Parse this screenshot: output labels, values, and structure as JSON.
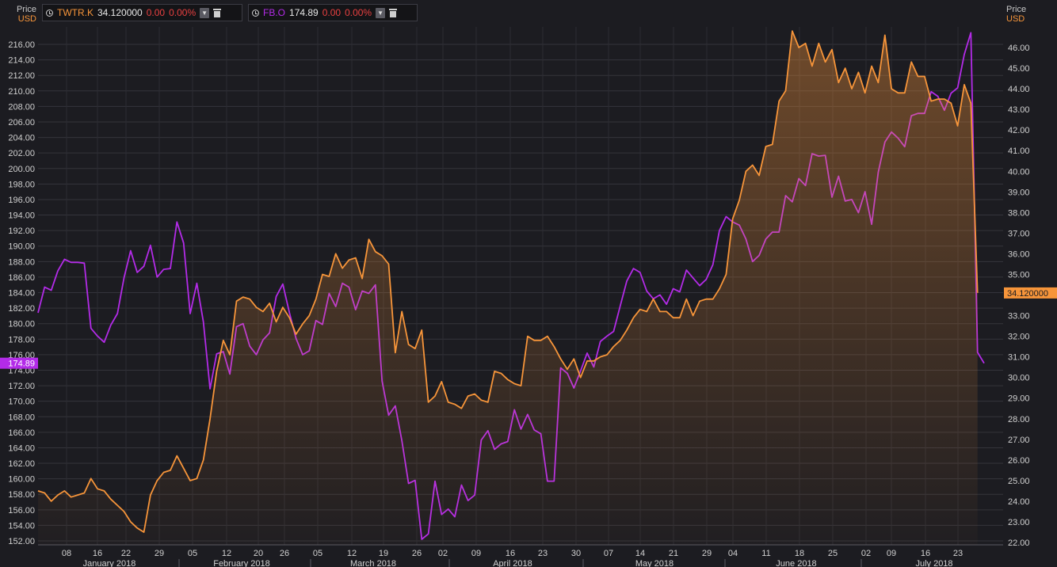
{
  "legends": [
    {
      "symbol": "TWTR.K",
      "value": "34.120000",
      "change": "0.00",
      "pct": "0.00%",
      "color": "#f7953a"
    },
    {
      "symbol": "FB.O",
      "value": "174.89",
      "change": "0.00",
      "pct": "0.00%",
      "color": "#b32be8"
    }
  ],
  "icons": {
    "clock": "clock-icon",
    "dropdown": "chevron-down-icon",
    "trash": "trash-icon"
  },
  "colors": {
    "background": "#1c1c21",
    "grid": "#34343b",
    "axis_text": "#d0d0d0",
    "currency": "#f7953a"
  },
  "chart_data": {
    "type": "line",
    "left_axis": {
      "title": "Price",
      "unit": "USD",
      "range": [
        152,
        218
      ],
      "ticks": [
        "216.00",
        "214.00",
        "212.00",
        "210.00",
        "208.00",
        "206.00",
        "204.00",
        "202.00",
        "200.00",
        "198.00",
        "196.00",
        "194.00",
        "192.00",
        "190.00",
        "188.00",
        "186.00",
        "184.00",
        "182.00",
        "180.00",
        "178.00",
        "176.00",
        "174.00",
        "172.00",
        "170.00",
        "168.00",
        "166.00",
        "164.00",
        "162.00",
        "160.00",
        "158.00",
        "156.00",
        "154.00",
        "152.00"
      ]
    },
    "right_axis": {
      "title": "Price",
      "unit": "USD",
      "range": [
        22,
        47
      ],
      "ticks": [
        "46.00",
        "45.00",
        "44.00",
        "43.00",
        "42.00",
        "41.00",
        "40.00",
        "39.00",
        "38.00",
        "37.00",
        "36.00",
        "35.00",
        "34.00",
        "33.00",
        "32.00",
        "31.00",
        "30.00",
        "29.00",
        "28.00",
        "27.00",
        "26.00",
        "25.00",
        "24.00",
        "23.00",
        "22.00"
      ]
    },
    "x_ticks": [
      "08",
      "16",
      "22",
      "29",
      "05",
      "12",
      "20",
      "26",
      "05",
      "12",
      "19",
      "26",
      "02",
      "09",
      "16",
      "23",
      "30",
      "07",
      "14",
      "21",
      "29",
      "04",
      "11",
      "18",
      "25",
      "02",
      "09",
      "16",
      "23"
    ],
    "months": [
      "January 2018",
      "February 2018",
      "March 2018",
      "April 2018",
      "May 2018",
      "June 2018",
      "July 2018"
    ],
    "series": [
      {
        "name": "FB.O",
        "axis": "left",
        "last_label": "174.89",
        "color": "#b32be8",
        "values": [
          181.4,
          184.7,
          184.3,
          186.8,
          188.3,
          187.9,
          187.9,
          187.8,
          179.4,
          178.4,
          177.6,
          179.8,
          181.3,
          185.9,
          189.4,
          186.6,
          187.4,
          190.1,
          186.0,
          187.0,
          187.1,
          193.1,
          190.4,
          181.3,
          185.2,
          180.2,
          171.6,
          176.1,
          176.4,
          173.5,
          179.6,
          180.0,
          177.1,
          176.0,
          177.9,
          178.8,
          183.5,
          185.1,
          181.4,
          178.1,
          176.0,
          176.5,
          180.4,
          179.9,
          183.9,
          182.2,
          185.2,
          184.7,
          181.8,
          184.2,
          183.9,
          185.0,
          172.6,
          168.2,
          169.4,
          164.9,
          159.4,
          159.8,
          152.2,
          152.9,
          159.7,
          155.4,
          156.1,
          155.1,
          159.2,
          157.2,
          157.9,
          165.0,
          166.2,
          163.8,
          164.5,
          164.8,
          168.9,
          166.4,
          168.3,
          166.3,
          165.8,
          159.7,
          159.7,
          174.3,
          173.6,
          171.7,
          173.9,
          176.2,
          174.4,
          177.7,
          178.4,
          179.0,
          182.3,
          185.5,
          187.1,
          186.6,
          184.2,
          183.2,
          183.7,
          182.5,
          184.5,
          184.1,
          186.9,
          185.9,
          184.9,
          185.7,
          187.6,
          192.0,
          193.8,
          193.1,
          192.7,
          190.9,
          188.0,
          188.8,
          190.9,
          191.8,
          191.8,
          196.5,
          195.7,
          198.7,
          197.8,
          201.9,
          201.6,
          201.7,
          196.3,
          199.0,
          195.8,
          196.0,
          194.3,
          197.0,
          192.8,
          199.5,
          203.4,
          204.7,
          203.9,
          202.8,
          206.8,
          207.1,
          207.1,
          209.9,
          209.3,
          207.5,
          209.7,
          210.4,
          214.7,
          217.5,
          176.3,
          174.9
        ]
      },
      {
        "name": "TWTR.K",
        "axis": "right",
        "last_label": "34.120000",
        "color": "#f7953a",
        "fill": true,
        "values": [
          24.5,
          24.4,
          24.0,
          24.3,
          24.5,
          24.2,
          24.3,
          24.4,
          25.1,
          24.6,
          24.5,
          24.1,
          23.8,
          23.5,
          23.0,
          22.7,
          22.5,
          24.3,
          25.0,
          25.4,
          25.5,
          26.2,
          25.6,
          25.0,
          25.1,
          26.0,
          28.0,
          30.3,
          31.8,
          31.1,
          33.7,
          33.9,
          33.8,
          33.4,
          33.2,
          33.6,
          32.7,
          33.4,
          32.9,
          32.1,
          32.6,
          33.0,
          33.8,
          35.0,
          34.9,
          36.0,
          35.3,
          35.7,
          35.8,
          34.8,
          36.7,
          36.1,
          35.9,
          35.5,
          31.2,
          33.2,
          31.6,
          31.4,
          32.3,
          28.8,
          29.1,
          29.8,
          28.8,
          28.7,
          28.5,
          29.1,
          29.2,
          28.9,
          28.8,
          30.3,
          30.2,
          29.9,
          29.7,
          29.6,
          32.0,
          31.8,
          31.8,
          32.0,
          31.5,
          30.9,
          30.4,
          30.9,
          30.0,
          30.8,
          30.8,
          31.0,
          31.1,
          31.5,
          31.8,
          32.3,
          32.9,
          33.3,
          33.2,
          33.8,
          33.2,
          33.2,
          32.9,
          32.9,
          33.8,
          33.0,
          33.7,
          33.8,
          33.8,
          34.3,
          35.0,
          37.7,
          38.6,
          40.0,
          40.3,
          39.8,
          41.2,
          41.3,
          43.4,
          43.9,
          46.8,
          46.0,
          46.2,
          45.1,
          46.2,
          45.3,
          45.9,
          44.3,
          45.0,
          44.0,
          44.8,
          43.8,
          45.1,
          44.3,
          46.6,
          44.0,
          43.8,
          43.8,
          45.3,
          44.6,
          44.6,
          43.4,
          43.5,
          43.5,
          43.3,
          42.2,
          44.2,
          43.3,
          34.1
        ]
      }
    ]
  }
}
